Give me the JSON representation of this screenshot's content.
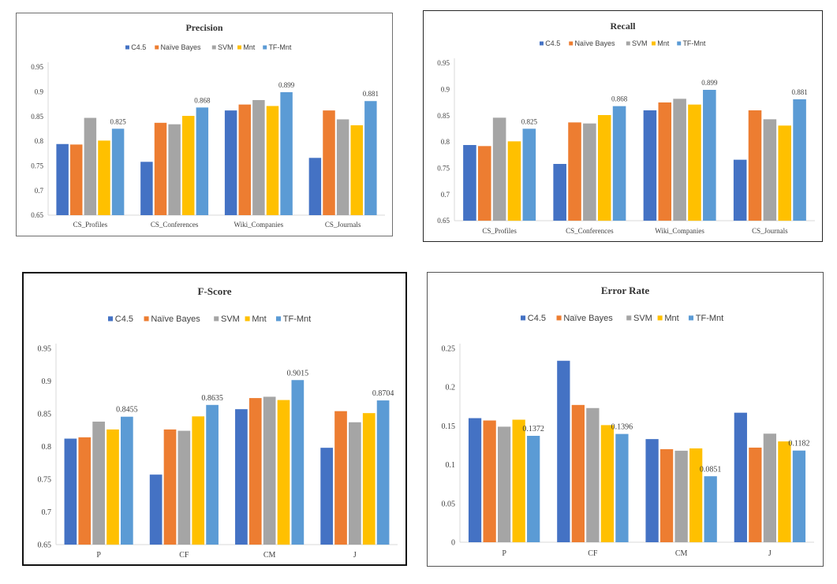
{
  "legend_colors": {
    "C4.5": "#4472C4",
    "Naïve Bayes": "#ED7D31",
    "SVM": "#A5A5A5",
    "Mnt": "#FFC000",
    "TF-Mnt": "#5B9BD5"
  },
  "chart_data": [
    {
      "id": "precision",
      "type": "bar",
      "title": "Precision",
      "legend_placement": "top",
      "categories": [
        "CS_Profiles",
        "CS_Conferences",
        "Wiki_Companies",
        "CS_Journals"
      ],
      "series": [
        {
          "name": "C4.5",
          "values": [
            0.794,
            0.758,
            0.862,
            0.766
          ]
        },
        {
          "name": "Naïve Bayes",
          "values": [
            0.793,
            0.837,
            0.874,
            0.862
          ]
        },
        {
          "name": "SVM",
          "values": [
            0.847,
            0.834,
            0.883,
            0.844
          ]
        },
        {
          "name": "Mnt",
          "values": [
            0.801,
            0.851,
            0.871,
            0.832
          ]
        },
        {
          "name": "TF-Mnt",
          "values": [
            0.825,
            0.868,
            0.899,
            0.881
          ]
        }
      ],
      "data_labels": [
        "0.825",
        "0.868",
        "0.899",
        "0.881"
      ],
      "ylim": [
        0.65,
        0.95
      ],
      "yticks": [
        "0.65",
        "0.7",
        "0.75",
        "0.8",
        "0.85",
        "0.9",
        "0.95"
      ],
      "xlabel": "",
      "ylabel": "",
      "grid": false
    },
    {
      "id": "recall",
      "type": "bar",
      "title": "Recall",
      "legend_placement": "top",
      "categories": [
        "CS_Profiles",
        "CS_Conferences",
        "Wiki_Companies",
        "CS_Journals"
      ],
      "series": [
        {
          "name": "C4.5",
          "values": [
            0.794,
            0.758,
            0.86,
            0.766
          ]
        },
        {
          "name": "Naïve Bayes",
          "values": [
            0.792,
            0.837,
            0.875,
            0.86
          ]
        },
        {
          "name": "SVM",
          "values": [
            0.846,
            0.835,
            0.882,
            0.843
          ]
        },
        {
          "name": "Mnt",
          "values": [
            0.801,
            0.851,
            0.871,
            0.831
          ]
        },
        {
          "name": "TF-Mnt",
          "values": [
            0.825,
            0.868,
            0.899,
            0.881
          ]
        }
      ],
      "data_labels": [
        "0.825",
        "0.868",
        "0.899",
        "0.881"
      ],
      "ylim": [
        0.65,
        0.95
      ],
      "yticks": [
        "0.65",
        "0.7",
        "0.75",
        "0.8",
        "0.85",
        "0.9",
        "0.95"
      ],
      "xlabel": "",
      "ylabel": "",
      "grid": false
    },
    {
      "id": "fscore",
      "type": "bar",
      "title": "F-Score",
      "legend_placement": "top",
      "categories": [
        "P",
        "CF",
        "CM",
        "J"
      ],
      "series": [
        {
          "name": "C4.5",
          "values": [
            0.812,
            0.757,
            0.857,
            0.798
          ]
        },
        {
          "name": "Naïve Bayes",
          "values": [
            0.814,
            0.826,
            0.874,
            0.854
          ]
        },
        {
          "name": "SVM",
          "values": [
            0.838,
            0.824,
            0.876,
            0.837
          ]
        },
        {
          "name": "Mnt",
          "values": [
            0.826,
            0.846,
            0.871,
            0.851
          ]
        },
        {
          "name": "TF-Mnt",
          "values": [
            0.8455,
            0.8635,
            0.9015,
            0.8704
          ]
        }
      ],
      "data_labels": [
        "0.8455",
        "0.8635",
        "0.9015",
        "0.8704"
      ],
      "ylim": [
        0.65,
        0.95
      ],
      "yticks": [
        "0.65",
        "0.7",
        "0.75",
        "0.8",
        "0.85",
        "0.9",
        "0.95"
      ],
      "xlabel": "",
      "ylabel": "",
      "grid": false
    },
    {
      "id": "error",
      "type": "bar",
      "title": "Error Rate",
      "legend_placement": "top",
      "categories": [
        "P",
        "CF",
        "CM",
        "J"
      ],
      "series": [
        {
          "name": "C4.5",
          "values": [
            0.16,
            0.234,
            0.133,
            0.167
          ]
        },
        {
          "name": "Naïve Bayes",
          "values": [
            0.157,
            0.177,
            0.12,
            0.122
          ]
        },
        {
          "name": "SVM",
          "values": [
            0.149,
            0.173,
            0.118,
            0.14
          ]
        },
        {
          "name": "Mnt",
          "values": [
            0.158,
            0.151,
            0.121,
            0.13
          ]
        },
        {
          "name": "TF-Mnt",
          "values": [
            0.1372,
            0.1396,
            0.0851,
            0.1182
          ]
        }
      ],
      "data_labels": [
        "0.1372",
        "0.1396",
        "0.0851",
        "0.1182"
      ],
      "ylim": [
        0,
        0.25
      ],
      "yticks": [
        "0",
        "0.05",
        "0.1",
        "0.15",
        "0.2",
        "0.25"
      ],
      "xlabel": "",
      "ylabel": "",
      "grid": false
    }
  ]
}
